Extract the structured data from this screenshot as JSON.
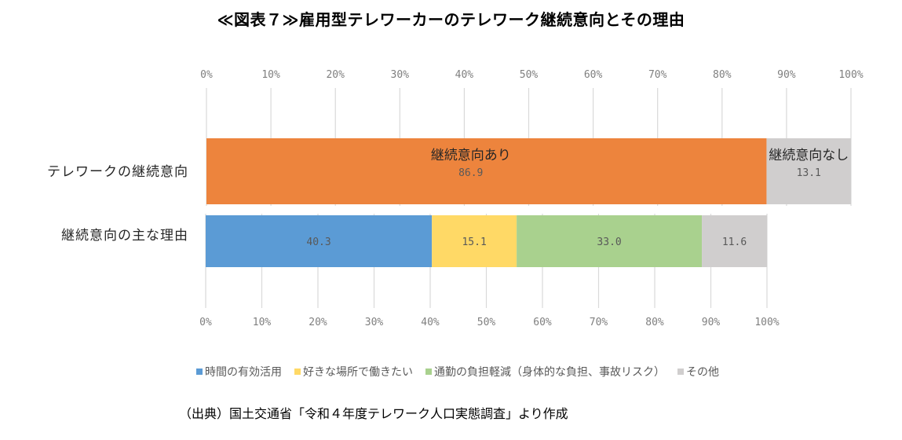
{
  "title": "≪図表７≫雇用型テレワーカーのテレワーク継続意向とその理由",
  "chart_data": {
    "type": "bar",
    "orientation": "horizontal-stacked-100",
    "title": "≪図表７≫雇用型テレワーカーのテレワーク継続意向とその理由",
    "xlim": [
      0,
      100
    ],
    "tick_labels": [
      "0%",
      "10%",
      "20%",
      "30%",
      "40%",
      "50%",
      "60%",
      "70%",
      "80%",
      "90%",
      "100%"
    ],
    "grid": true,
    "categories": [
      "テレワークの継続意向",
      "継続意向の主な理由"
    ],
    "bars": [
      {
        "category": "テレワークの継続意向",
        "segments": [
          {
            "name": "継続意向あり",
            "value": 86.9,
            "label": "86.9",
            "color": "#ED843D"
          },
          {
            "name": "継続意向なし",
            "value": 13.1,
            "label": "13.1",
            "color": "#D0CECE"
          }
        ]
      },
      {
        "category": "継続意向の主な理由",
        "scale_total": 86.9,
        "segments": [
          {
            "name": "時間の有効活用",
            "value": 40.3,
            "label": "40.3",
            "color": "#5B9BD5"
          },
          {
            "name": "好きな場所で働きたい",
            "value": 15.1,
            "label": "15.1",
            "color": "#FFD966"
          },
          {
            "name": "通勤の負担軽減（身体的な負担、事故リスク）",
            "value": 33.0,
            "label": "33.0",
            "color": "#A9D18E"
          },
          {
            "name": "その他",
            "value": 11.6,
            "label": "11.6",
            "color": "#D0CECE"
          }
        ]
      }
    ],
    "legend": {
      "position": "bottom",
      "entries": [
        {
          "label": "時間の有効活用",
          "color": "#5B9BD5"
        },
        {
          "label": "好きな場所で働きたい",
          "color": "#FFD966"
        },
        {
          "label": "通勤の負担軽減（身体的な負担、事故リスク）",
          "color": "#A9D18E"
        },
        {
          "label": "その他",
          "color": "#D0CECE"
        }
      ]
    }
  },
  "source": "（出典）国土交通省「令和４年度テレワーク人口実態調査」より作成"
}
